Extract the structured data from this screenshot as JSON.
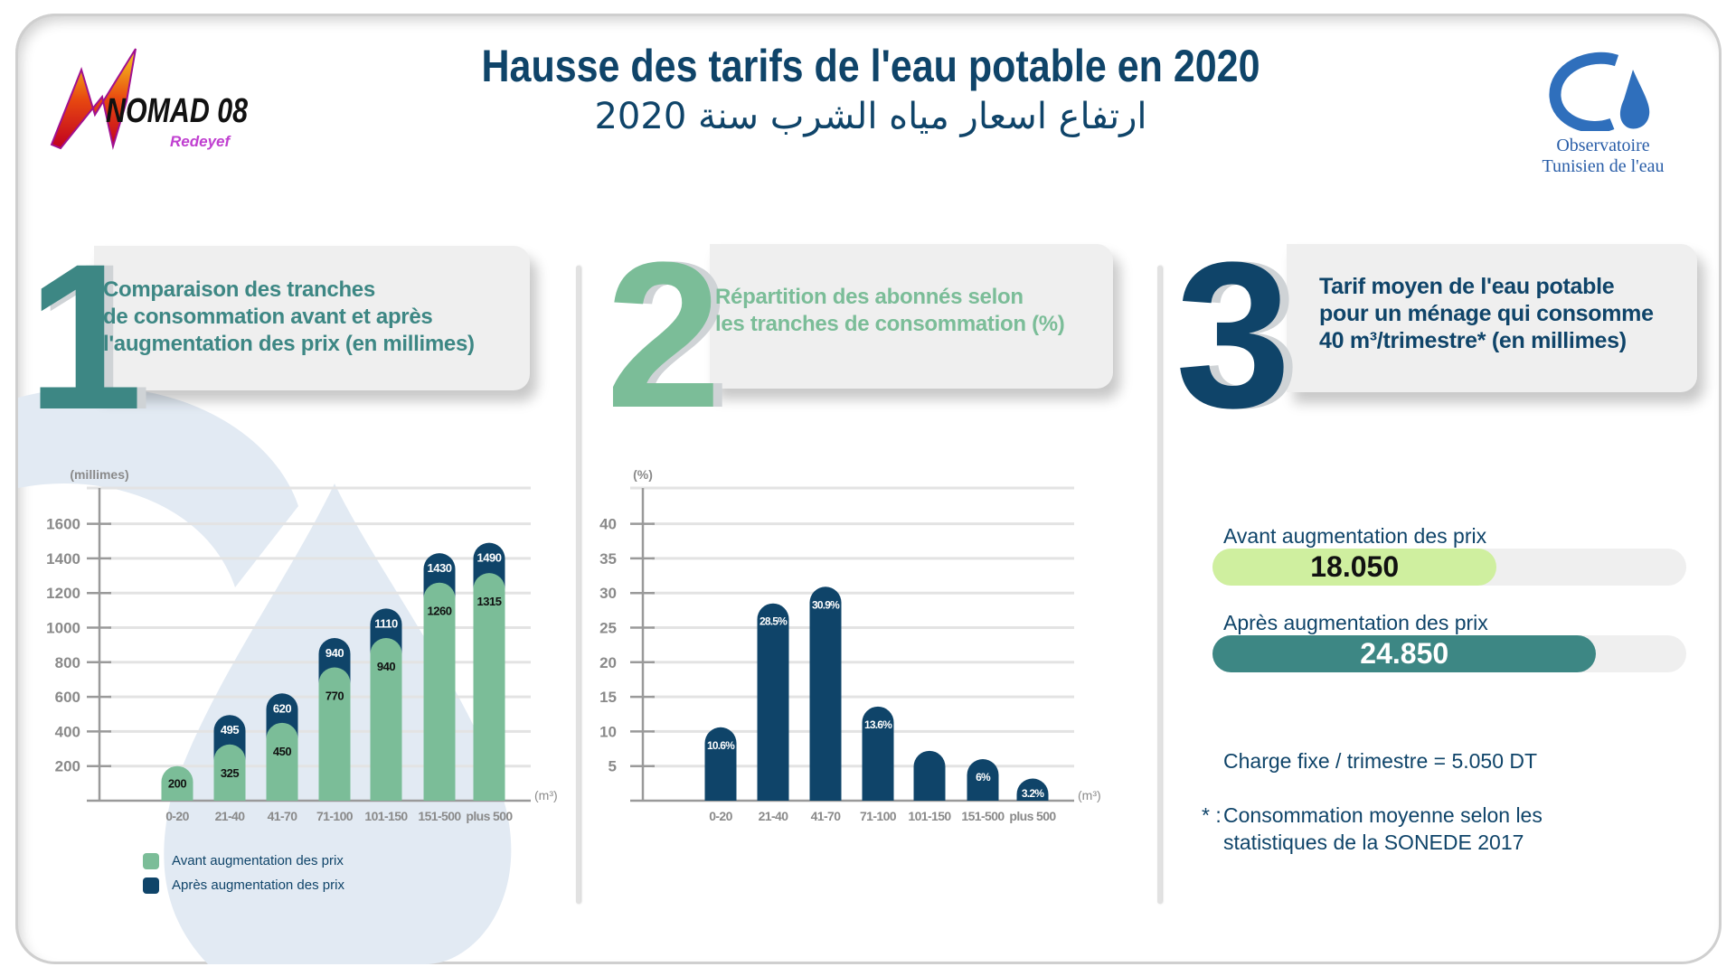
{
  "header": {
    "title": "Hausse des tarifs de l'eau potable en 2020",
    "subtitle_ar": "ارتفاع اسعار مياه الشرب سنة 2020",
    "logo_left": {
      "name": "NOMAD 08",
      "tagline": "Redeyef"
    },
    "logo_right": {
      "line1": "Observatoire",
      "line2": "Tunisien de l'eau"
    }
  },
  "colors": {
    "navy": "#0f4469",
    "green": "#7bbd98",
    "teal": "#3d8784",
    "light_green": "#cfef9f",
    "watermark": "#e2eaf3"
  },
  "sections": [
    {
      "number": "1",
      "lines": [
        "Comparaison des tranches",
        "de consommation avant et après",
        "l'augmentation des prix (en millimes)"
      ]
    },
    {
      "number": "2",
      "lines": [
        "Répartition des abonnés selon",
        "les tranches de consommation (%)"
      ]
    },
    {
      "number": "3",
      "lines": [
        "Tarif moyen de l'eau potable",
        "pour un ménage qui consomme",
        "40 m³/trimestre* (en millimes)"
      ]
    }
  ],
  "chart_data": [
    {
      "type": "bar",
      "ylabel": "(millimes)",
      "xlabel": "(m³)",
      "ylim": [
        0,
        1800
      ],
      "yticks": [
        200,
        400,
        600,
        800,
        1000,
        1200,
        1400,
        1600
      ],
      "grid": true,
      "legend_placement": "bottom-left",
      "categories": [
        "0-20",
        "21-40",
        "41-70",
        "71-100",
        "101-150",
        "151-500",
        "plus 500"
      ],
      "series": [
        {
          "name": "Avant augmentation des prix",
          "values": [
            200,
            325,
            450,
            770,
            940,
            1260,
            1315
          ]
        },
        {
          "name": "Après augmentation des prix",
          "values": [
            200,
            495,
            620,
            940,
            1110,
            1430,
            1490
          ]
        }
      ],
      "labels_before": [
        "200",
        "325",
        "450",
        "770",
        "940",
        "1260",
        "1315"
      ],
      "labels_after": [
        "",
        "495",
        "620",
        "940",
        "1110",
        "1430",
        "1490"
      ]
    },
    {
      "type": "bar",
      "ylabel": "(%)",
      "xlabel": "(m³)",
      "ylim": [
        0,
        45
      ],
      "yticks": [
        5,
        10,
        15,
        20,
        25,
        30,
        35,
        40
      ],
      "grid": true,
      "categories": [
        "0-20",
        "21-40",
        "41-70",
        "71-100",
        "101-150",
        "151-500",
        "plus 500"
      ],
      "values": [
        10.6,
        28.5,
        30.9,
        13.6,
        7.2,
        6,
        3.2
      ],
      "labels": [
        "10.6%",
        "28.5%",
        "30.9%",
        "13.6%",
        "",
        "6%",
        "3.2%"
      ]
    }
  ],
  "tariff": {
    "before": {
      "label": "Avant augmentation des prix",
      "value": "18.050",
      "fill_percent": 60
    },
    "after": {
      "label": "Après augmentation des prix",
      "value": "24.850",
      "fill_percent": 81
    },
    "fixed_charge": "Charge fixe / trimestre = 5.050 DT",
    "footnote_mark": "* :",
    "footnote_lines": [
      "Consommation moyenne selon les",
      "statistiques de la SONEDE  2017"
    ]
  }
}
